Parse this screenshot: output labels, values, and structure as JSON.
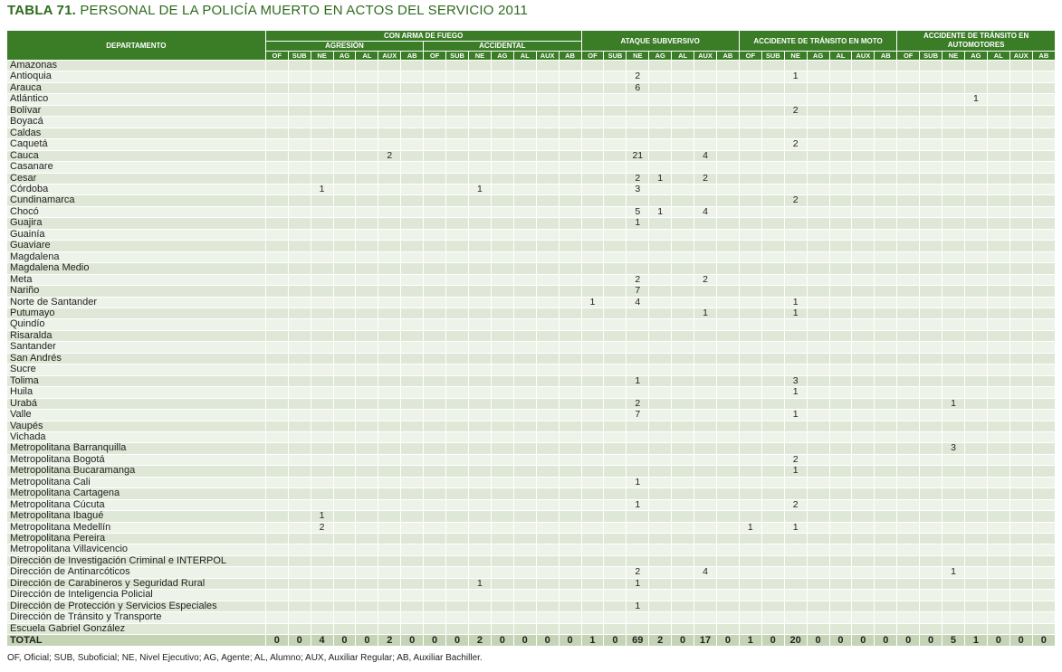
{
  "title": {
    "bold": "TABLA 71.",
    "rest": " PERSONAL DE LA POLICÍA MUERTO EN ACTOS DEL SERVICIO 2011"
  },
  "header": {
    "dept": "DEPARTAMENTO",
    "con_arma": "CON ARMA DE FUEGO",
    "agresion": "AGRESIÓN",
    "accidental": "ACCIDENTAL",
    "ataque": "ATAQUE SUBVERSIVO",
    "moto": "ACCIDENTE DE TRÁNSITO EN MOTO",
    "automotores": "ACCIDENTE DE TRÁNSITO EN AUTOMOTORES",
    "cols": [
      "OF",
      "SUB",
      "NE",
      "AG",
      "AL",
      "AUX",
      "AB"
    ]
  },
  "rows": [
    {
      "name": "Amazonas",
      "v": {}
    },
    {
      "name": "Antioquia",
      "v": {
        "16": "2",
        "23": "1"
      }
    },
    {
      "name": "Arauca",
      "v": {
        "16": "6"
      }
    },
    {
      "name": "Atlántico",
      "v": {
        "31": "1"
      }
    },
    {
      "name": "Bolívar",
      "v": {
        "23": "2"
      }
    },
    {
      "name": "Boyacá",
      "v": {}
    },
    {
      "name": "Caldas",
      "v": {}
    },
    {
      "name": "Caquetá",
      "v": {
        "23": "2"
      }
    },
    {
      "name": "Cauca",
      "v": {
        "5": "2",
        "16": "21",
        "19": "4"
      }
    },
    {
      "name": "Casanare",
      "v": {}
    },
    {
      "name": "Cesar",
      "v": {
        "16": "2",
        "17": "1",
        "19": "2"
      }
    },
    {
      "name": "Córdoba",
      "v": {
        "2": "1",
        "9": "1",
        "16": "3"
      }
    },
    {
      "name": "Cundinamarca",
      "v": {
        "23": "2"
      }
    },
    {
      "name": "Chocó",
      "v": {
        "16": "5",
        "17": "1",
        "19": "4"
      }
    },
    {
      "name": "Guajira",
      "v": {
        "16": "1"
      }
    },
    {
      "name": "Guainía",
      "v": {}
    },
    {
      "name": "Guaviare",
      "v": {}
    },
    {
      "name": "Magdalena",
      "v": {}
    },
    {
      "name": "Magdalena Medio",
      "v": {}
    },
    {
      "name": "Meta",
      "v": {
        "16": "2",
        "19": "2"
      }
    },
    {
      "name": "Nariño",
      "v": {
        "16": "7"
      }
    },
    {
      "name": "Norte de Santander",
      "v": {
        "14": "1",
        "16": "4",
        "23": "1"
      }
    },
    {
      "name": "Putumayo",
      "v": {
        "19": "1",
        "23": "1"
      }
    },
    {
      "name": "Quindío",
      "v": {}
    },
    {
      "name": "Risaralda",
      "v": {}
    },
    {
      "name": "Santander",
      "v": {}
    },
    {
      "name": "San Andrés",
      "v": {}
    },
    {
      "name": "Sucre",
      "v": {}
    },
    {
      "name": "Tolima",
      "v": {
        "16": "1",
        "23": "3"
      }
    },
    {
      "name": "Huila",
      "v": {
        "23": "1"
      }
    },
    {
      "name": "Urabá",
      "v": {
        "16": "2",
        "30": "1"
      }
    },
    {
      "name": "Valle",
      "v": {
        "16": "7",
        "23": "1"
      }
    },
    {
      "name": "Vaupés",
      "v": {}
    },
    {
      "name": "Vichada",
      "v": {}
    },
    {
      "name": "Metropolitana Barranquilla",
      "v": {
        "30": "3"
      }
    },
    {
      "name": "Metropolitana Bogotá",
      "v": {
        "23": "2"
      }
    },
    {
      "name": "Metropolitana Bucaramanga",
      "v": {
        "23": "1"
      }
    },
    {
      "name": "Metropolitana Cali",
      "v": {
        "16": "1"
      }
    },
    {
      "name": "Metropolitana Cartagena",
      "v": {}
    },
    {
      "name": "Metropolitana Cúcuta",
      "v": {
        "16": "1",
        "23": "2"
      }
    },
    {
      "name": "Metropolitana Ibagué",
      "v": {
        "2": "1"
      }
    },
    {
      "name": "Metropolitana Medellín",
      "v": {
        "2": "2",
        "21": "1",
        "23": "1"
      }
    },
    {
      "name": "Metropolitana Pereira",
      "v": {}
    },
    {
      "name": "Metropolitana Villavicencio",
      "v": {}
    },
    {
      "name": "Dirección de Investigación Criminal e INTERPOL",
      "v": {}
    },
    {
      "name": "Dirección de Antinarcóticos",
      "v": {
        "16": "2",
        "19": "4",
        "30": "1"
      }
    },
    {
      "name": "Dirección de Carabineros y Seguridad Rural",
      "v": {
        "9": "1",
        "16": "1"
      }
    },
    {
      "name": "Dirección de Inteligencia Policial",
      "v": {}
    },
    {
      "name": "Dirección de Protección y Servicios Especiales",
      "v": {
        "16": "1"
      }
    },
    {
      "name": "Dirección de Tránsito y Transporte",
      "v": {}
    },
    {
      "name": "Escuela Gabriel González",
      "v": {}
    }
  ],
  "total": {
    "label": "TOTAL",
    "values": [
      "0",
      "0",
      "4",
      "0",
      "0",
      "2",
      "0",
      "0",
      "0",
      "2",
      "0",
      "0",
      "0",
      "0",
      "1",
      "0",
      "69",
      "2",
      "0",
      "17",
      "0",
      "1",
      "0",
      "20",
      "0",
      "0",
      "0",
      "0",
      "0",
      "0",
      "5",
      "1",
      "0",
      "0",
      "0"
    ]
  },
  "note": "OF, Oficial; SUB, Suboficial; NE, Nivel Ejecutivo; AG, Agente; AL, Alumno; AUX, Auxiliar Regular; AB, Auxiliar Bachiller.",
  "colors": {
    "header_green": "#3a7d26",
    "title_green": "#2e6b1e",
    "row_light": "#eef3e9",
    "row_dark": "#dfe8d6"
  }
}
